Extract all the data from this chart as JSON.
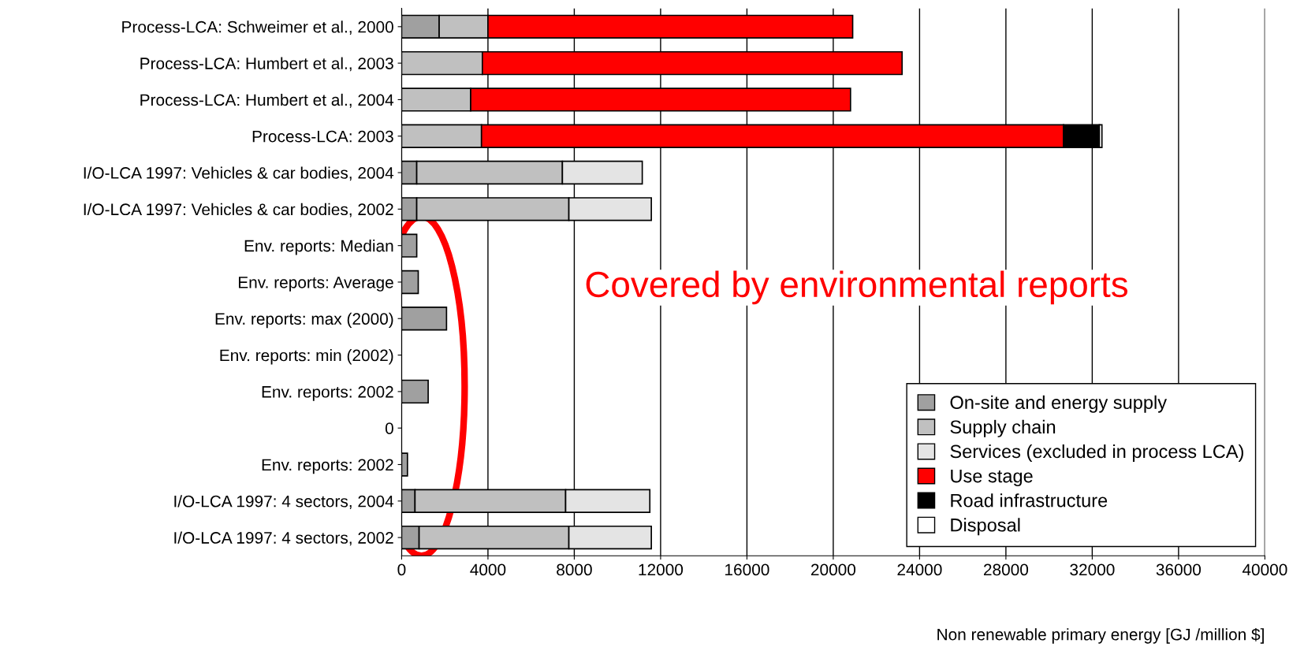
{
  "chart_data": {
    "type": "bar",
    "orientation": "horizontal",
    "stacked": true,
    "xlabel": "Non renewable primary energy [GJ /million $]",
    "categories": [
      "Process-LCA: Schweimer et al., 2000",
      "Process-LCA: Humbert et al., 2003",
      "Process-LCA: Humbert et al., 2004",
      "Process-LCA: 2003",
      "I/O-LCA 1997: Vehicles & car bodies, 2004",
      "I/O-LCA 1997: Vehicles & car bodies, 2002",
      "Env. reports: Median",
      "Env. reports: Average",
      "Env. reports: max (2000)",
      "Env. reports: min (2002)",
      "Env. reports: 2002",
      "0",
      "Env. reports: 2002",
      "I/O-LCA 1997: 4 sectors, 2004",
      "I/O-LCA 1997: 4 sectors, 2002"
    ],
    "series": [
      {
        "name": "On-site and energy supply",
        "color": "#a0a0a0",
        "values": [
          1740,
          null,
          null,
          null,
          700,
          700,
          700,
          770,
          2080,
          null,
          1230,
          null,
          270,
          620,
          810
        ]
      },
      {
        "name": "Supply chain",
        "color": "#c0c0c0",
        "values": [
          2260,
          3740,
          3200,
          3700,
          6750,
          7050,
          null,
          null,
          null,
          null,
          null,
          null,
          null,
          6980,
          6940
        ]
      },
      {
        "name": "Services (excluded in process LCA)",
        "color": "#e4e4e4",
        "values": [
          null,
          null,
          null,
          null,
          3700,
          3820,
          null,
          null,
          null,
          null,
          null,
          null,
          null,
          3900,
          3820
        ]
      },
      {
        "name": "Use stage",
        "color": "#ff0000",
        "values": [
          16900,
          19450,
          17600,
          26970,
          null,
          null,
          null,
          null,
          null,
          null,
          null,
          null,
          null,
          null,
          null
        ]
      },
      {
        "name": "Road infrastructure",
        "color": "#000000",
        "values": [
          null,
          null,
          null,
          1660,
          null,
          null,
          null,
          null,
          null,
          null,
          null,
          null,
          null,
          null,
          null
        ]
      },
      {
        "name": "Disposal",
        "color": "#ffffff",
        "values": [
          null,
          null,
          null,
          120,
          null,
          null,
          null,
          null,
          null,
          null,
          null,
          null,
          null,
          null,
          null
        ]
      }
    ],
    "xlim": [
      0,
      40000
    ],
    "xticks": [
      0,
      4000,
      8000,
      12000,
      16000,
      20000,
      24000,
      28000,
      32000,
      36000,
      40000
    ],
    "grid": "x",
    "legend": "bottom right",
    "annotations": [
      "Covered by environmental reports"
    ]
  }
}
